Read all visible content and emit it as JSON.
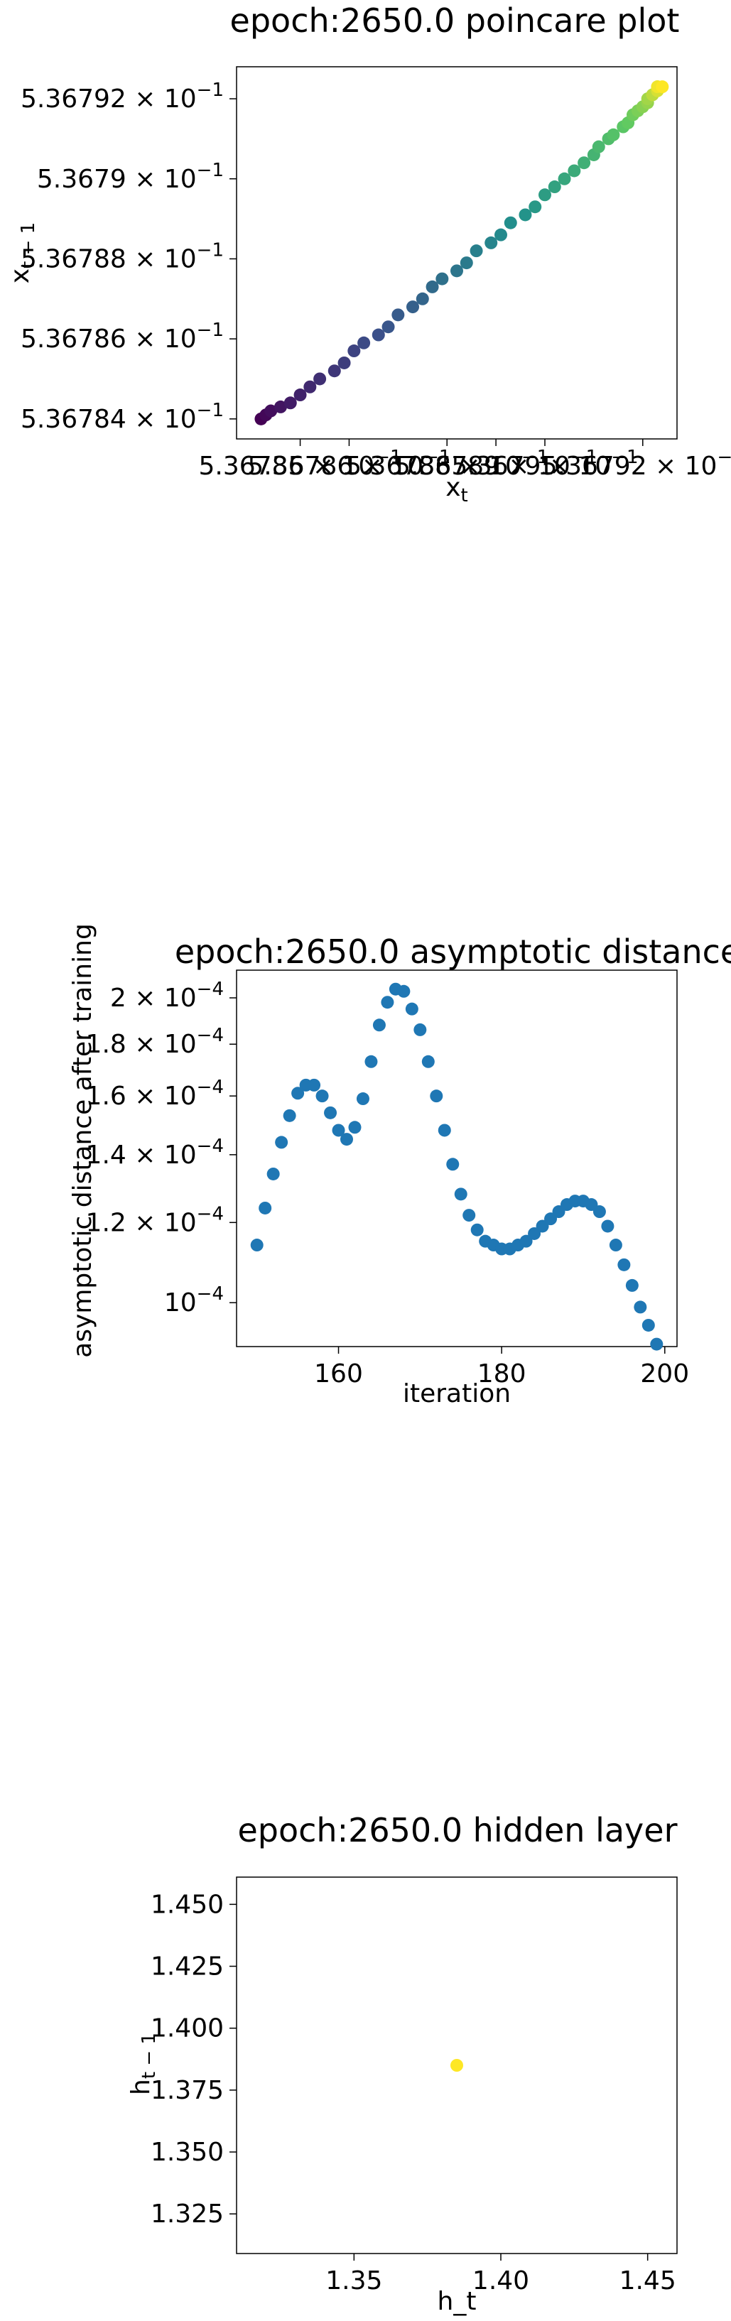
{
  "chart_data": [
    {
      "type": "scatter",
      "title": "epoch:2650.0 poincare plot",
      "xlabel": "x_t",
      "ylabel": "x_{t-1}",
      "log_scale": true,
      "grid": false,
      "colormap": "viridis",
      "xlim": [
        0.5367837,
        0.5367927
      ],
      "ylim": [
        0.5367835,
        0.5367928
      ],
      "x_ticks": [
        {
          "mant": "5.36785",
          "value": 0.536785
        },
        {
          "mant": "5.36786",
          "value": 0.536786
        },
        {
          "mant": "5.36788",
          "value": 0.536788
        },
        {
          "mant": "5.36789",
          "value": 0.536789
        },
        {
          "mant": "5.3679",
          "value": 0.53679
        },
        {
          "mant": "5.36792",
          "value": 0.536792
        }
      ],
      "y_ticks": [
        {
          "mant": "5.36784",
          "value": 0.536784
        },
        {
          "mant": "5.36786",
          "value": 0.536786
        },
        {
          "mant": "5.36788",
          "value": 0.536788
        },
        {
          "mant": "5.3679",
          "value": 0.53679
        },
        {
          "mant": "5.36792",
          "value": 0.536792
        }
      ],
      "points": [
        [
          0.5367842,
          0.536784
        ],
        [
          0.5367843,
          0.5367841
        ],
        [
          0.5367844,
          0.5367842
        ],
        [
          0.5367846,
          0.5367843
        ],
        [
          0.5367848,
          0.5367844
        ],
        [
          0.536785,
          0.5367846
        ],
        [
          0.5367852,
          0.5367848
        ],
        [
          0.5367854,
          0.536785
        ],
        [
          0.5367857,
          0.5367852
        ],
        [
          0.5367859,
          0.5367854
        ],
        [
          0.5367861,
          0.5367857
        ],
        [
          0.5367863,
          0.5367859
        ],
        [
          0.5367866,
          0.5367861
        ],
        [
          0.5367868,
          0.5367863
        ],
        [
          0.536787,
          0.5367866
        ],
        [
          0.5367873,
          0.5367868
        ],
        [
          0.5367875,
          0.536787
        ],
        [
          0.5367877,
          0.5367873
        ],
        [
          0.5367879,
          0.5367875
        ],
        [
          0.5367882,
          0.5367877
        ],
        [
          0.5367884,
          0.5367879
        ],
        [
          0.5367886,
          0.5367882
        ],
        [
          0.5367889,
          0.5367884
        ],
        [
          0.5367891,
          0.5367886
        ],
        [
          0.5367893,
          0.5367889
        ],
        [
          0.5367896,
          0.5367891
        ],
        [
          0.5367898,
          0.5367893
        ],
        [
          0.53679,
          0.5367896
        ],
        [
          0.5367902,
          0.5367898
        ],
        [
          0.5367904,
          0.53679
        ],
        [
          0.5367906,
          0.5367902
        ],
        [
          0.5367908,
          0.5367904
        ],
        [
          0.536791,
          0.5367906
        ],
        [
          0.5367911,
          0.5367908
        ],
        [
          0.5367913,
          0.536791
        ],
        [
          0.5367914,
          0.5367911
        ],
        [
          0.5367916,
          0.5367913
        ],
        [
          0.5367917,
          0.5367914
        ],
        [
          0.5367918,
          0.5367916
        ],
        [
          0.5367919,
          0.5367917
        ],
        [
          0.536792,
          0.5367918
        ],
        [
          0.5367921,
          0.5367919
        ],
        [
          0.5367921,
          0.536792
        ],
        [
          0.5367922,
          0.5367921
        ],
        [
          0.5367922,
          0.5367921
        ],
        [
          0.5367923,
          0.5367922
        ],
        [
          0.5367923,
          0.5367922
        ],
        [
          0.5367923,
          0.5367923
        ],
        [
          0.5367923,
          0.5367923
        ],
        [
          0.5367924,
          0.5367923
        ]
      ]
    },
    {
      "type": "scatter",
      "title": "epoch:2650.0 asymptotic distance",
      "xlabel": "iteration",
      "ylabel": "asymptotic distance after training",
      "log_scale_y": true,
      "grid": false,
      "color": "#1f77b4",
      "xlim": [
        147.5,
        201.5
      ],
      "ylim": [
        9.05e-05,
        0.000213
      ],
      "x_ticks": [
        160,
        180,
        200
      ],
      "y_ticks": [
        {
          "mant": "10",
          "exp": "−4",
          "value": 0.0001
        },
        {
          "mant": "1.2 × 10",
          "exp": "−4",
          "value": 0.00012
        },
        {
          "mant": "1.4 × 10",
          "exp": "−4",
          "value": 0.00014
        },
        {
          "mant": "1.6 × 10",
          "exp": "−4",
          "value": 0.00016
        },
        {
          "mant": "1.8 × 10",
          "exp": "−4",
          "value": 0.00018
        },
        {
          "mant": "2 × 10",
          "exp": "−4",
          "value": 0.0002
        }
      ],
      "x": [
        150,
        151,
        152,
        153,
        154,
        155,
        156,
        157,
        158,
        159,
        160,
        161,
        162,
        163,
        164,
        165,
        166,
        167,
        168,
        169,
        170,
        171,
        172,
        173,
        174,
        175,
        176,
        177,
        178,
        179,
        180,
        181,
        182,
        183,
        184,
        185,
        186,
        187,
        188,
        189,
        190,
        191,
        192,
        193,
        194,
        195,
        196,
        197,
        198,
        199
      ],
      "y": [
        0.000114,
        0.000124,
        0.000134,
        0.000144,
        0.000153,
        0.000161,
        0.000164,
        0.000164,
        0.00016,
        0.000154,
        0.000148,
        0.000145,
        0.000149,
        0.000159,
        0.000173,
        0.000188,
        0.000198,
        0.000204,
        0.000203,
        0.000195,
        0.000186,
        0.000173,
        0.00016,
        0.000148,
        0.000137,
        0.000128,
        0.000122,
        0.000118,
        0.000115,
        0.000114,
        0.000113,
        0.000113,
        0.000114,
        0.000115,
        0.000117,
        0.000119,
        0.000121,
        0.000123,
        0.000125,
        0.000126,
        0.000126,
        0.000125,
        0.000123,
        0.000119,
        0.000114,
        0.000109,
        0.000104,
        9.9e-05,
        9.5e-05,
        9.1e-05
      ]
    },
    {
      "type": "scatter",
      "title": "epoch:2650.0 hidden layer",
      "xlabel": "h_t",
      "ylabel": "h_{t-1}",
      "grid": false,
      "color": "#fde725",
      "xlim": [
        1.31,
        1.46
      ],
      "ylim": [
        1.309,
        1.461
      ],
      "x_ticks": [
        "1.35",
        "1.40",
        "1.45"
      ],
      "y_ticks": [
        "1.325",
        "1.350",
        "1.375",
        "1.400",
        "1.425",
        "1.450"
      ],
      "points": [
        [
          1.385,
          1.385
        ]
      ]
    }
  ]
}
